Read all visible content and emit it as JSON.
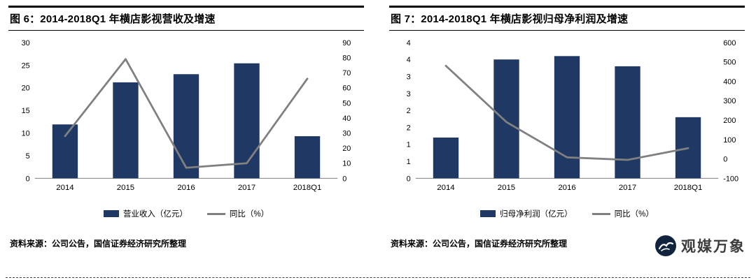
{
  "page": {
    "background": "#ffffff"
  },
  "colors": {
    "bar": "#1F3864",
    "line": "#808080",
    "axis_line": "#808080",
    "tick_text": "#000000",
    "logo": "#10243E",
    "watermark_text": "#3D3D3D"
  },
  "watermark": {
    "text": "观媒万象"
  },
  "chart_data": [
    {
      "type": "bar",
      "combo": "bar+line",
      "title": "图 6：2014-2018Q1 年横店影视营收及增速",
      "categories": [
        "2014",
        "2015",
        "2016",
        "2017",
        "2018Q1"
      ],
      "series": [
        {
          "name": "营业收入（亿元）",
          "type": "bar",
          "axis": "left",
          "values": [
            11.9,
            21.2,
            23.0,
            25.4,
            9.3
          ]
        },
        {
          "name": "同比（%）",
          "type": "line",
          "axis": "right",
          "values": [
            28,
            79,
            7,
            10,
            66
          ]
        }
      ],
      "left_axis": {
        "min": 0,
        "max": 30,
        "ticks": [
          "0",
          "5",
          "10",
          "15",
          "20",
          "25",
          "30"
        ]
      },
      "right_axis": {
        "min": 0,
        "max": 90,
        "ticks": [
          "0",
          "10",
          "20",
          "30",
          "40",
          "50",
          "60",
          "70",
          "80",
          "90"
        ]
      },
      "grid": false,
      "legend_position": "bottom",
      "source": "资料来源：公司公告，国信证券经济研究所整理"
    },
    {
      "type": "bar",
      "combo": "bar+line",
      "title": "图 7：2014-2018Q1 年横店影视归母净利润及增速",
      "categories": [
        "2014",
        "2015",
        "2016",
        "2017",
        "2018Q1"
      ],
      "series": [
        {
          "name": "归母净利润（亿元）",
          "type": "bar",
          "axis": "left",
          "values": [
            1.2,
            3.5,
            3.6,
            3.3,
            1.8
          ]
        },
        {
          "name": "同比（%）",
          "type": "line",
          "axis": "right",
          "values": [
            480,
            190,
            8,
            -5,
            55
          ]
        }
      ],
      "left_axis": {
        "min": 0,
        "max": 4,
        "ticks": [
          "0",
          "1",
          "1",
          "2",
          "2",
          "3",
          "3",
          "4",
          "4"
        ]
      },
      "right_axis": {
        "min": -100,
        "max": 600,
        "ticks": [
          "-100",
          "0",
          "100",
          "200",
          "300",
          "400",
          "500",
          "600"
        ]
      },
      "grid": false,
      "legend_position": "bottom",
      "source": "资料来源：公司公告，国信证券经济研究所整理"
    }
  ]
}
